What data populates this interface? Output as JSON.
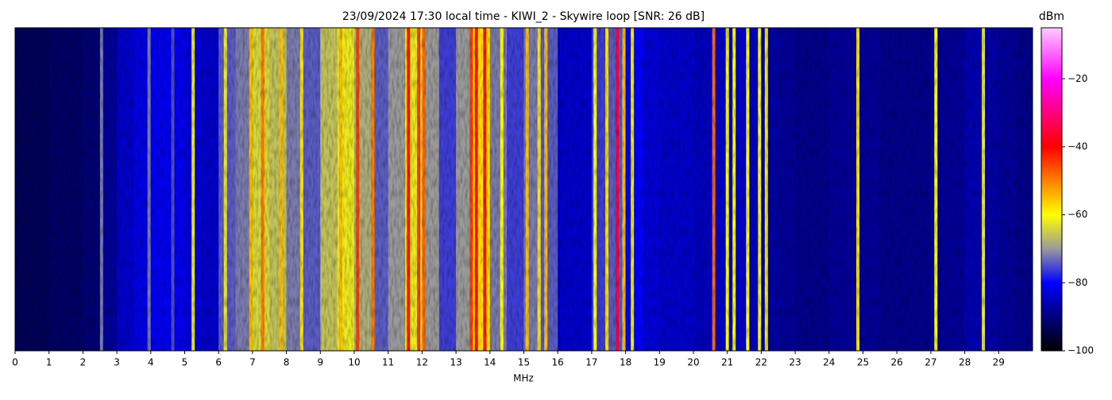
{
  "chart_data": {
    "type": "heatmap",
    "title": "23/09/2024 17:30 local time - KIWI_2 - Skywire loop [SNR: 26 dB]",
    "xlabel": "MHz",
    "colorbar_label": "dBm",
    "xlim": [
      0,
      30
    ],
    "xticks": [
      0,
      1,
      2,
      3,
      4,
      5,
      6,
      7,
      8,
      9,
      10,
      11,
      12,
      13,
      14,
      15,
      16,
      17,
      18,
      19,
      20,
      21,
      22,
      23,
      24,
      25,
      26,
      27,
      28,
      29
    ],
    "clim": [
      -100,
      -5
    ],
    "cticks": [
      {
        "value": -100,
        "label": "−100"
      },
      {
        "value": -80,
        "label": "−80"
      },
      {
        "value": -60,
        "label": "−60"
      },
      {
        "value": -40,
        "label": "−40"
      },
      {
        "value": -20,
        "label": "−20"
      }
    ],
    "colormap": [
      {
        "value": -100,
        "color": "#000000"
      },
      {
        "value": -80,
        "color": "#0000ff"
      },
      {
        "value": -70,
        "color": "#9a9a9a"
      },
      {
        "value": -60,
        "color": "#ffff00"
      },
      {
        "value": -40,
        "color": "#ff0000"
      },
      {
        "value": -20,
        "color": "#ff00ff"
      },
      {
        "value": -5,
        "color": "#ffccff"
      }
    ],
    "bin_width": 0.5,
    "x": [
      0,
      0.5,
      1,
      1.5,
      2,
      2.5,
      3,
      3.5,
      4,
      4.5,
      5,
      5.5,
      6,
      6.5,
      7,
      7.5,
      8,
      8.5,
      9,
      9.5,
      10,
      10.5,
      11,
      11.5,
      12,
      12.5,
      13,
      13.5,
      14,
      14.5,
      15,
      15.5,
      16,
      16.5,
      17,
      17.5,
      18,
      18.5,
      19,
      19.5,
      20,
      20.5,
      21,
      21.5,
      22,
      22.5,
      23,
      23.5,
      24,
      24.5,
      25,
      25.5,
      26,
      26.5,
      27,
      27.5,
      28,
      28.5,
      29,
      29.5
    ],
    "values": [
      -93,
      -93,
      -92,
      -92,
      -91,
      -88,
      -84,
      -82,
      -81,
      -81,
      -83,
      -84,
      -74,
      -72,
      -64,
      -66,
      -72,
      -74,
      -66,
      -62,
      -68,
      -74,
      -70,
      -62,
      -70,
      -76,
      -70,
      -58,
      -72,
      -76,
      -72,
      -74,
      -84,
      -84,
      -76,
      -74,
      -80,
      -83,
      -84,
      -84,
      -85,
      -84,
      -84,
      -85,
      -87,
      -88,
      -89,
      -89,
      -88,
      -88,
      -88,
      -89,
      -89,
      -89,
      -88,
      -88,
      -86,
      -87,
      -88,
      -89
    ],
    "signals": {
      "x": [
        2.55,
        3.95,
        4.65,
        5.25,
        6.2,
        6.95,
        7.3,
        7.85,
        8.45,
        9.6,
        10.1,
        10.55,
        11.6,
        11.9,
        12.05,
        13.45,
        13.6,
        13.85,
        14.35,
        15.1,
        15.45,
        15.65,
        17.1,
        17.45,
        17.75,
        17.95,
        18.2,
        20.6,
        21.0,
        21.2,
        21.6,
        21.95,
        22.15,
        24.85,
        27.15,
        28.55
      ],
      "values": [
        -72,
        -72,
        -75,
        -62,
        -62,
        -55,
        -50,
        -55,
        -58,
        -55,
        -45,
        -50,
        -42,
        -45,
        -48,
        -45,
        -42,
        -42,
        -60,
        -55,
        -58,
        -55,
        -60,
        -58,
        -35,
        -55,
        -62,
        -48,
        -60,
        -60,
        -60,
        -60,
        -62,
        -58,
        -60,
        -62
      ]
    }
  }
}
